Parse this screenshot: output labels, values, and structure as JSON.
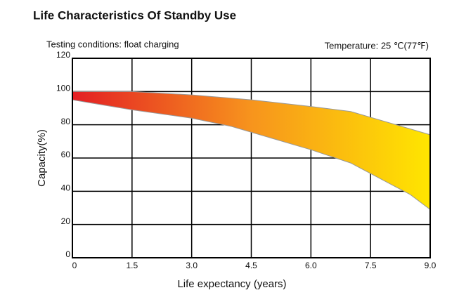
{
  "chart_data": {
    "type": "band",
    "title": "Life Characteristics Of Standby Use",
    "annotations": [
      "Testing conditions: float charging",
      "Temperature: 25 ℃(77℉)"
    ],
    "xlabel": "Life expectancy (years)",
    "ylabel": "Capacity(%)",
    "colors": [
      "#e31e24",
      "#f7941d",
      "#ffe600"
    ],
    "edge_color": "#999999",
    "grid": true,
    "xlim": [
      0,
      9
    ],
    "xticks": [
      0,
      1.5,
      {
        "value": 3,
        "label": "3.0"
      },
      4.5,
      {
        "value": 6,
        "label": "6.0"
      },
      7.5,
      {
        "value": 9,
        "label": "9.0"
      }
    ],
    "ylim": [
      0,
      120
    ],
    "yticks": [
      0,
      20,
      40,
      60,
      80,
      100,
      120
    ],
    "series": [
      {
        "x": [
          0,
          1.5,
          3,
          4.5,
          6,
          7,
          9
        ],
        "values": [
          100,
          100,
          98,
          95,
          91,
          88,
          74
        ]
      },
      {
        "x": [
          0,
          1.5,
          3,
          4,
          6,
          7,
          8.5,
          9
        ],
        "values": [
          95,
          89,
          84,
          79,
          65,
          57,
          38,
          29
        ]
      }
    ]
  }
}
